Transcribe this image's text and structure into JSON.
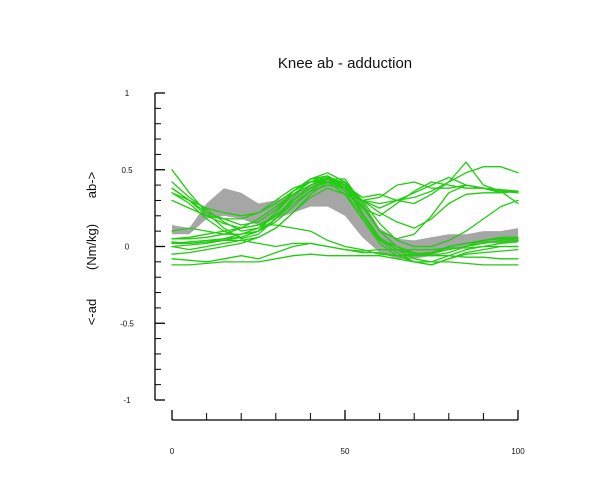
{
  "chart_data": {
    "type": "line",
    "title": "Knee ab - adduction",
    "ylabel_parts": [
      "<-ad",
      "(Nm/kg)",
      "ab->"
    ],
    "xlim": [
      0,
      100
    ],
    "ylim": [
      -1,
      1
    ],
    "x_ticks": [
      0,
      50,
      100
    ],
    "y_ticks": [
      1,
      0.5,
      0,
      -0.5,
      -1
    ],
    "grid": false,
    "colors": {
      "series": "#22cc11",
      "band": "#a6a6a6",
      "axis": "#000000"
    },
    "band": {
      "x": [
        0,
        5,
        10,
        15,
        20,
        25,
        30,
        35,
        40,
        45,
        50,
        55,
        60,
        65,
        70,
        75,
        80,
        85,
        90,
        95,
        100
      ],
      "lower": [
        0.08,
        0.08,
        0.18,
        0.2,
        0.18,
        0.14,
        0.18,
        0.22,
        0.26,
        0.26,
        0.2,
        0.06,
        -0.04,
        -0.08,
        -0.08,
        -0.06,
        -0.02,
        0.0,
        0.02,
        0.02,
        0.03
      ],
      "upper": [
        0.14,
        0.12,
        0.28,
        0.38,
        0.35,
        0.28,
        0.3,
        0.34,
        0.4,
        0.45,
        0.42,
        0.3,
        0.12,
        0.05,
        0.04,
        0.06,
        0.08,
        0.08,
        0.1,
        0.1,
        0.12
      ]
    },
    "x": [
      0,
      5,
      10,
      15,
      20,
      25,
      30,
      35,
      40,
      45,
      50,
      55,
      60,
      65,
      70,
      75,
      80,
      85,
      90,
      95,
      100
    ],
    "series": [
      {
        "values": [
          0.38,
          0.3,
          0.2,
          0.15,
          0.12,
          0.14,
          0.2,
          0.3,
          0.4,
          0.45,
          0.4,
          0.2,
          0.05,
          0.0,
          -0.05,
          -0.05,
          0.0,
          0.02,
          0.03,
          0.03,
          0.04
        ]
      },
      {
        "values": [
          0.5,
          0.35,
          0.22,
          0.12,
          0.05,
          0.08,
          0.18,
          0.32,
          0.44,
          0.48,
          0.42,
          0.22,
          0.06,
          -0.02,
          -0.08,
          -0.1,
          -0.06,
          -0.02,
          0.0,
          0.02,
          0.03
        ]
      },
      {
        "values": [
          0.35,
          0.28,
          0.18,
          0.1,
          0.06,
          0.1,
          0.22,
          0.36,
          0.44,
          0.44,
          0.36,
          0.18,
          0.04,
          -0.04,
          -0.1,
          -0.12,
          -0.08,
          -0.05,
          -0.04,
          -0.03,
          -0.02
        ]
      },
      {
        "values": [
          0.42,
          0.32,
          0.24,
          0.16,
          0.1,
          0.12,
          0.22,
          0.34,
          0.42,
          0.46,
          0.4,
          0.3,
          0.25,
          0.3,
          0.35,
          0.4,
          0.45,
          0.4,
          0.38,
          0.36,
          0.35
        ]
      },
      {
        "values": [
          0.38,
          0.3,
          0.22,
          0.18,
          0.14,
          0.16,
          0.24,
          0.36,
          0.44,
          0.46,
          0.38,
          0.25,
          0.2,
          0.28,
          0.36,
          0.42,
          0.4,
          0.38,
          0.38,
          0.37,
          0.36
        ]
      },
      {
        "values": [
          0.3,
          0.25,
          0.2,
          0.18,
          0.18,
          0.22,
          0.3,
          0.38,
          0.42,
          0.42,
          0.34,
          0.3,
          0.32,
          0.4,
          0.42,
          0.38,
          0.38,
          0.4,
          0.38,
          0.36,
          0.36
        ]
      },
      {
        "values": [
          0.02,
          0.03,
          0.04,
          0.05,
          0.06,
          0.1,
          0.18,
          0.3,
          0.38,
          0.42,
          0.38,
          0.3,
          0.28,
          0.3,
          0.32,
          0.36,
          0.42,
          0.55,
          0.4,
          0.36,
          0.28
        ]
      },
      {
        "values": [
          0.05,
          0.05,
          0.06,
          0.08,
          0.12,
          0.18,
          0.26,
          0.34,
          0.4,
          0.44,
          0.4,
          0.32,
          0.34,
          0.3,
          0.28,
          0.34,
          0.42,
          0.48,
          0.52,
          0.52,
          0.48
        ]
      },
      {
        "values": [
          0.03,
          0.02,
          0.03,
          0.05,
          0.08,
          0.12,
          0.2,
          0.3,
          0.38,
          0.44,
          0.42,
          0.26,
          0.1,
          0.05,
          0.08,
          0.2,
          0.35,
          0.4,
          0.38,
          0.35,
          0.36
        ]
      },
      {
        "values": [
          0.0,
          0.01,
          0.02,
          0.04,
          0.06,
          0.1,
          0.18,
          0.28,
          0.36,
          0.4,
          0.38,
          0.22,
          0.05,
          -0.02,
          -0.05,
          -0.04,
          0.0,
          0.02,
          0.04,
          0.05,
          0.05
        ]
      },
      {
        "values": [
          -0.05,
          -0.04,
          -0.02,
          0.0,
          0.02,
          0.06,
          0.12,
          0.22,
          0.32,
          0.38,
          0.34,
          0.18,
          0.02,
          -0.06,
          -0.1,
          -0.12,
          -0.08,
          -0.04,
          -0.02,
          0.0,
          0.0
        ]
      },
      {
        "values": [
          0.02,
          0.02,
          0.03,
          0.04,
          0.04,
          0.02,
          0.0,
          0.02,
          0.02,
          0.0,
          -0.02,
          -0.03,
          -0.02,
          -0.02,
          -0.02,
          -0.02,
          -0.01,
          -0.01,
          0.0,
          0.0,
          0.0
        ]
      },
      {
        "values": [
          -0.08,
          -0.09,
          -0.1,
          -0.08,
          -0.06,
          -0.08,
          -0.04,
          0.0,
          0.02,
          0.0,
          -0.02,
          -0.04,
          -0.04,
          -0.06,
          -0.06,
          -0.06,
          -0.06,
          -0.07,
          -0.07,
          -0.08,
          -0.08
        ]
      },
      {
        "values": [
          -0.12,
          -0.12,
          -0.11,
          -0.1,
          -0.1,
          -0.1,
          -0.08,
          -0.06,
          -0.05,
          -0.06,
          -0.06,
          -0.06,
          -0.06,
          -0.08,
          -0.1,
          -0.1,
          -0.1,
          -0.11,
          -0.12,
          -0.12,
          -0.12
        ]
      },
      {
        "values": [
          0.05,
          0.06,
          0.08,
          0.1,
          0.12,
          0.14,
          0.14,
          0.12,
          0.1,
          0.04,
          0.0,
          -0.02,
          -0.05,
          -0.06,
          -0.05,
          -0.04,
          -0.02,
          0.0,
          0.02,
          0.04,
          0.05
        ]
      },
      {
        "values": [
          0.35,
          0.3,
          0.25,
          0.22,
          0.2,
          0.22,
          0.28,
          0.36,
          0.42,
          0.44,
          0.38,
          0.3,
          0.22,
          0.16,
          0.12,
          0.18,
          0.28,
          0.34,
          0.35,
          0.35,
          0.36
        ]
      },
      {
        "values": [
          0.1,
          0.12,
          0.1,
          0.08,
          0.08,
          0.1,
          0.16,
          0.26,
          0.36,
          0.44,
          0.44,
          0.28,
          0.1,
          0.0,
          -0.04,
          -0.06,
          -0.04,
          0.0,
          0.04,
          0.06,
          0.06
        ]
      },
      {
        "values": [
          0.0,
          -0.02,
          0.0,
          0.02,
          0.04,
          0.06,
          0.12,
          0.22,
          0.34,
          0.42,
          0.42,
          0.3,
          0.15,
          0.04,
          0.0,
          0.0,
          0.04,
          0.1,
          0.18,
          0.26,
          0.3
        ]
      }
    ]
  }
}
